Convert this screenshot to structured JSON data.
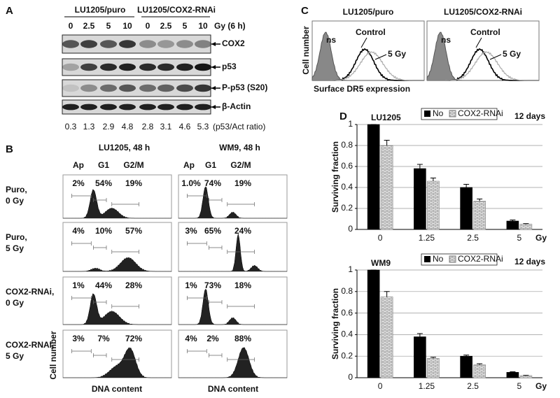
{
  "panel_a": {
    "letter": "A",
    "groups": [
      "LU1205/puro",
      "LU1205/COX2-RNAi"
    ],
    "doses": [
      "0",
      "2.5",
      "5",
      "10",
      "0",
      "2.5",
      "5",
      "10"
    ],
    "dose_unit": "Gy (6 h)",
    "bands": [
      "COX2",
      "p53",
      "P-p53 (S20)",
      "β-Actin"
    ],
    "ratios": [
      0.3,
      1.3,
      2.9,
      4.8,
      2.8,
      3.1,
      4.6,
      5.3
    ],
    "ratio_label": "(p53/Act ratio)"
  },
  "panel_b": {
    "letter": "B",
    "columns": [
      {
        "title": "LU1205, 48 h",
        "phases": [
          "Ap",
          "G1",
          "G2/M"
        ],
        "percents": [
          [
            "2%",
            "54%",
            "19%"
          ],
          [
            "4%",
            "10%",
            "57%"
          ],
          [
            "1%",
            "44%",
            "28%"
          ],
          [
            "3%",
            "7%",
            "72%"
          ]
        ]
      },
      {
        "title": "WM9, 48 h",
        "phases": [
          "Ap",
          "G1",
          "G2/M"
        ],
        "percents": [
          [
            "1.0%",
            "74%",
            "19%"
          ],
          [
            "3%",
            "65%",
            "24%"
          ],
          [
            "1%",
            "73%",
            "18%"
          ],
          [
            "4%",
            "2%",
            "88%"
          ]
        ]
      }
    ],
    "rows": [
      [
        "Puro,",
        "0 Gy"
      ],
      [
        "Puro,",
        "5 Gy"
      ],
      [
        "COX2-RNAi,",
        "0 Gy"
      ],
      [
        "COX2-RNAi,",
        "5 Gy"
      ]
    ],
    "y_label": "Cell number",
    "x_label": "DNA content"
  },
  "panel_c": {
    "letter": "C",
    "plots": [
      {
        "title": "LU1205/puro",
        "labels": [
          "ns",
          "Control",
          "5 Gy"
        ]
      },
      {
        "title": "LU1205/COX2-RNAi",
        "labels": [
          "ns",
          "Control",
          "5 Gy"
        ]
      }
    ],
    "y_label": "Cell number",
    "x_label": "Surface DR5 expression"
  },
  "panel_d": {
    "letter": "D",
    "charts": [
      {
        "type": "bar",
        "title": "LU1205",
        "subtitle": "12 days",
        "categories": [
          "0",
          "1.25",
          "2.5",
          "5"
        ],
        "x_unit": "Gy",
        "y_label": "Surviving fraction",
        "ylim": [
          0,
          1
        ],
        "yticks": [
          0,
          0.2,
          0.4,
          0.6,
          0.8,
          1
        ],
        "grid": true,
        "series": [
          {
            "name": "No",
            "color": "#000000",
            "values": [
              1,
              0.58,
              0.4,
              0.08
            ],
            "errors": [
              0,
              0.04,
              0.03,
              0.01
            ]
          },
          {
            "name": "COX2-RNAi",
            "color": "#808080",
            "values": [
              0.8,
              0.46,
              0.27,
              0.05
            ],
            "errors": [
              0.05,
              0.03,
              0.02,
              0.005
            ]
          }
        ]
      },
      {
        "type": "bar",
        "title": "WM9",
        "subtitle": "12 days",
        "categories": [
          "0",
          "1.25",
          "2.5",
          "5"
        ],
        "x_unit": "Gy",
        "y_label": "Surviving fraction",
        "ylim": [
          0,
          1
        ],
        "yticks": [
          0,
          0.2,
          0.4,
          0.6,
          0.8,
          1
        ],
        "grid": true,
        "series": [
          {
            "name": "No",
            "color": "#000000",
            "values": [
              1,
              0.38,
              0.2,
              0.05
            ],
            "errors": [
              0,
              0.03,
              0.01,
              0.005
            ]
          },
          {
            "name": "COX2-RNAi",
            "color": "#808080",
            "values": [
              0.75,
              0.18,
              0.12,
              0.02
            ],
            "errors": [
              0.05,
              0.01,
              0.01,
              0.003
            ]
          }
        ]
      }
    ]
  }
}
